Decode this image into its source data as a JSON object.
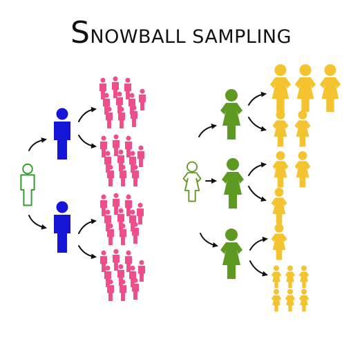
{
  "title": {
    "first_letter": "S",
    "rest": "NOWBALL SAMPLING"
  },
  "colors": {
    "seed_outline": "#2fa02f",
    "wave1": "#1515d6",
    "wave2": "#ee4f8a",
    "seed_female_outline": "#6a9a2a",
    "wave1_female": "#5e9a22",
    "wave2_female": "#f4c430",
    "arrow": "#111111"
  },
  "diagram": {
    "left_tree": {
      "icons": "male-person-icon",
      "seed_count": 1,
      "wave1_count": 2,
      "wave2_groups": [
        10,
        10,
        10,
        10
      ]
    },
    "right_tree": {
      "icons": "female-person-icon",
      "seed_count": 1,
      "wave1_count": 3,
      "wave2_groups": [
        3,
        2,
        2,
        1,
        1,
        6
      ]
    }
  }
}
